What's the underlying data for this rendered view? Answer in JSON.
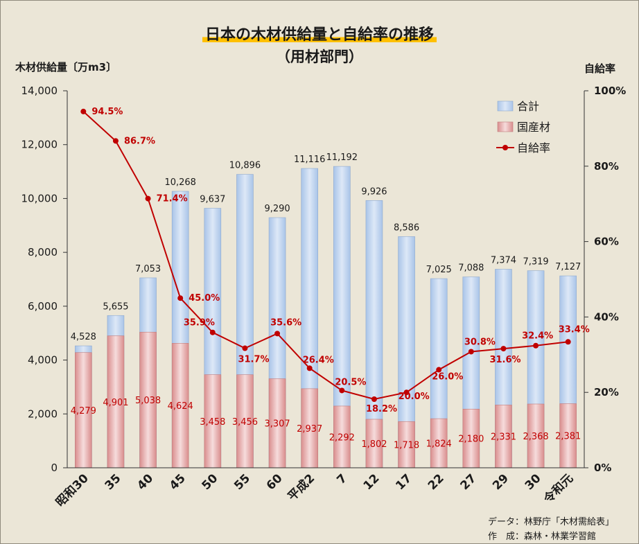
{
  "chart_data": {
    "type": "bar",
    "title": "日本の木材供給量と自給率の推移",
    "subtitle": "（用材部門）",
    "ylabel": "木材供給量〔万m3〕",
    "y2label": "自給率",
    "categories": [
      "昭和30",
      "35",
      "40",
      "45",
      "50",
      "55",
      "60",
      "平成2",
      "7",
      "12",
      "17",
      "22",
      "27",
      "29",
      "30",
      "令和元"
    ],
    "ylim": [
      0,
      14000
    ],
    "yticks": [
      "0",
      "2,000",
      "4,000",
      "6,000",
      "8,000",
      "10,000",
      "12,000",
      "14,000"
    ],
    "y2lim": [
      0,
      100
    ],
    "y2ticks": [
      "0%",
      "20%",
      "40%",
      "60%",
      "80%",
      "100%"
    ],
    "legend_position": "top-right",
    "series": [
      {
        "name": "合計",
        "type": "bar",
        "color": "#c5d7ef",
        "values": [
          4528,
          5655,
          7053,
          10268,
          9637,
          10896,
          9290,
          11116,
          11192,
          9926,
          8586,
          7025,
          7088,
          7374,
          7319,
          7127
        ],
        "labels": [
          "4,528",
          "5,655",
          "7,053",
          "10,268",
          "9,637",
          "10,896",
          "9,290",
          "11,116",
          "11,192",
          "9,926",
          "8,586",
          "7,025",
          "7,088",
          "7,374",
          "7,319",
          "7,127"
        ]
      },
      {
        "name": "国産材",
        "type": "bar",
        "color": "#e9b4b4",
        "values": [
          4279,
          4901,
          5038,
          4624,
          3458,
          3456,
          3307,
          2937,
          2292,
          1802,
          1718,
          1824,
          2180,
          2331,
          2368,
          2381
        ],
        "labels": [
          "4,279",
          "4,901",
          "5,038",
          "4,624",
          "3,458",
          "3,456",
          "3,307",
          "2,937",
          "2,292",
          "1,802",
          "1,718",
          "1,824",
          "2,180",
          "2,331",
          "2,368",
          "2,381"
        ]
      },
      {
        "name": "自給率",
        "type": "line",
        "axis": "right",
        "color": "#c00000",
        "values": [
          94.5,
          86.7,
          71.4,
          45.0,
          35.9,
          31.7,
          35.6,
          26.4,
          20.5,
          18.2,
          20.0,
          26.0,
          30.8,
          31.6,
          32.4,
          33.4
        ],
        "labels": [
          "94.5%",
          "86.7%",
          "71.4%",
          "45.0%",
          "35.9%",
          "31.7%",
          "35.6%",
          "26.4%",
          "20.5%",
          "18.2%",
          "20.0%",
          "26.0%",
          "30.8%",
          "31.6%",
          "32.4%",
          "33.4%"
        ]
      }
    ]
  },
  "source": {
    "line1": "データ：林野庁「木材需給表」",
    "line2": "作　成：森林・林業学習館"
  }
}
